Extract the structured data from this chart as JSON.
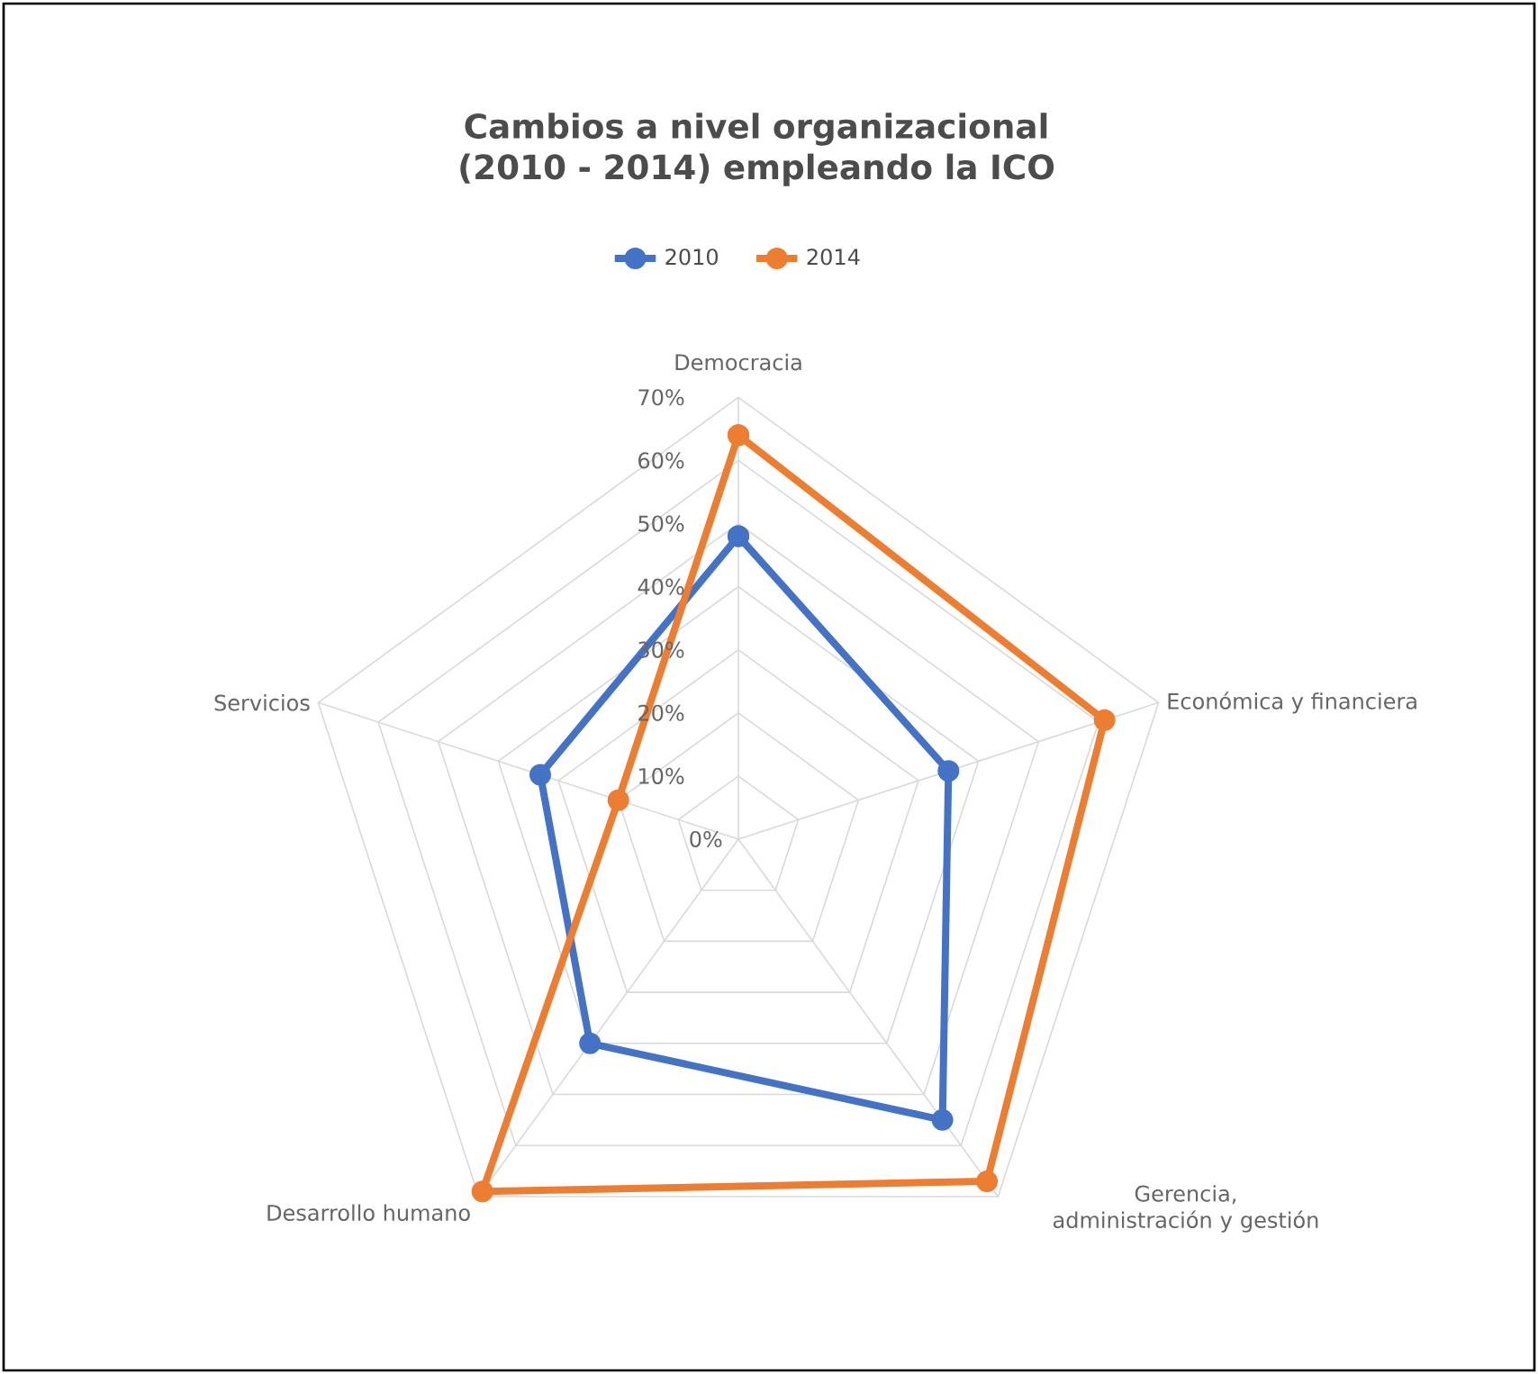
{
  "chart_data": {
    "type": "radar",
    "title": "Cambios  a nivel organizacional  (2010 - 2014) empleando la ICO",
    "categories": [
      "Democracia",
      "Económica y financiera",
      "Gerencia, administración y gestión",
      "Desarrollo humano",
      "Servicios"
    ],
    "series": [
      {
        "name": "2010",
        "color": "#4472c4",
        "values": [
          48,
          35,
          55,
          40,
          33
        ]
      },
      {
        "name": "2014",
        "color": "#ed7d31",
        "values": [
          64,
          61,
          67,
          69,
          20
        ]
      }
    ],
    "ylim": [
      0,
      70
    ],
    "yticks": [
      {
        "value": 0,
        "label": "0%"
      },
      {
        "value": 10,
        "label": "10%"
      },
      {
        "value": 20,
        "label": "20%"
      },
      {
        "value": 30,
        "label": "30%"
      },
      {
        "value": 40,
        "label": "40%"
      },
      {
        "value": 50,
        "label": "50%"
      },
      {
        "value": 60,
        "label": "60%"
      },
      {
        "value": 70,
        "label": "70%"
      }
    ],
    "grid": true,
    "legend": "top",
    "marker": "circle"
  }
}
